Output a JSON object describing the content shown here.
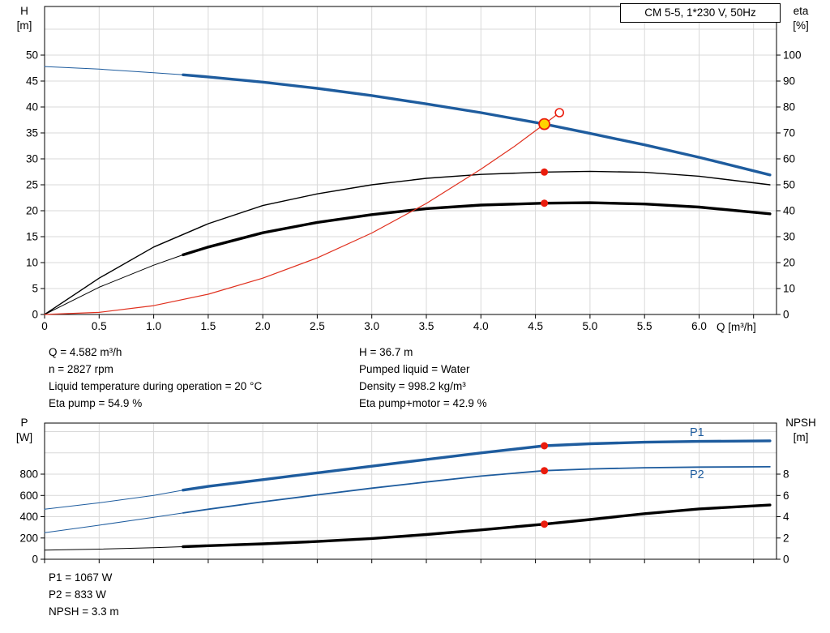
{
  "colors": {
    "blue": "#1e5c9e",
    "black": "#000000",
    "red": "#e0301e",
    "marker_red": "#ea1c0d",
    "duty_yellow": "#ffd300",
    "grid": "#d9d9d9",
    "axis": "#000000"
  },
  "info_top": {
    "left": [
      "Q = 4.582 m³/h",
      "n = 2827 rpm",
      "Liquid temperature during operation = 20 °C",
      "Eta pump = 54.9 %"
    ],
    "right": [
      "H = 36.7 m",
      "Pumped liquid = Water",
      "Density = 998.2 kg/m³",
      "Eta pump+motor = 42.9 %"
    ]
  },
  "info_bottom": [
    "P1 = 1067 W",
    "P2 = 833 W",
    "NPSH = 3.3 m"
  ],
  "chart_data": [
    {
      "id": "hq-eta-chart",
      "type": "line",
      "title": "CM 5-5, 1*230 V, 50Hz",
      "xlabel": "Q [m³/h]",
      "axis_labels": {
        "left": [
          "H",
          "[m]"
        ],
        "right": [
          "eta",
          "[%]"
        ]
      },
      "x_range": [
        0,
        6.71
      ],
      "left_range": [
        0,
        59.375
      ],
      "right_range": [
        0,
        118.75
      ],
      "x_ticks": [
        0,
        0.5,
        1,
        1.5,
        2,
        2.5,
        3,
        3.5,
        4,
        4.5,
        5,
        5.5,
        6,
        6.5
      ],
      "x_tick_labels": [
        "0",
        "0.5",
        "1.0",
        "1.5",
        "2.0",
        "2.5",
        "3.0",
        "3.5",
        "4.0",
        "4.5",
        "5.0",
        "5.5",
        "6.0",
        ""
      ],
      "x_grid": [
        0.5,
        1,
        1.5,
        2,
        2.5,
        3,
        3.5,
        4,
        4.5,
        5,
        5.5,
        6,
        6.5
      ],
      "left_ticks": [
        0,
        5,
        10,
        15,
        20,
        25,
        30,
        35,
        40,
        45,
        50
      ],
      "left_grid": [
        5,
        10,
        15,
        20,
        25,
        30,
        35,
        40,
        45,
        50,
        55
      ],
      "right_ticks": [
        0,
        10,
        20,
        30,
        40,
        50,
        60,
        70,
        80,
        90,
        100
      ],
      "series": [
        {
          "id": "head-curve",
          "name": "H (head)",
          "axis": "left",
          "color": "blue",
          "split": 1.27,
          "w_thin": 1,
          "w_thick": 3.4,
          "points": [
            [
              0,
              47.8
            ],
            [
              0.5,
              47.3
            ],
            [
              1.0,
              46.6
            ],
            [
              1.27,
              46.2
            ],
            [
              1.5,
              45.8
            ],
            [
              2.0,
              44.8
            ],
            [
              2.5,
              43.6
            ],
            [
              3.0,
              42.2
            ],
            [
              3.5,
              40.6
            ],
            [
              4.0,
              38.9
            ],
            [
              4.582,
              36.7
            ],
            [
              5.0,
              34.9
            ],
            [
              5.5,
              32.7
            ],
            [
              6.0,
              30.3
            ],
            [
              6.65,
              26.9
            ]
          ]
        },
        {
          "id": "eta-pump-curve",
          "name": "Eta pump",
          "axis": "right",
          "color": "black",
          "split": null,
          "w_thin": 1,
          "w_thick": 1.4,
          "points": [
            [
              0,
              0
            ],
            [
              0.5,
              14
            ],
            [
              1.0,
              26
            ],
            [
              1.5,
              35
            ],
            [
              2.0,
              42
            ],
            [
              2.5,
              46.5
            ],
            [
              3.0,
              50
            ],
            [
              3.5,
              52.5
            ],
            [
              4.0,
              54
            ],
            [
              4.582,
              54.9
            ],
            [
              5.0,
              55.2
            ],
            [
              5.5,
              54.8
            ],
            [
              6.0,
              53.3
            ],
            [
              6.65,
              50
            ]
          ]
        },
        {
          "id": "eta-pump-motor-curve",
          "name": "Eta pump+motor",
          "axis": "right",
          "color": "black",
          "split": 1.27,
          "w_thin": 1,
          "w_thick": 3.4,
          "points": [
            [
              0,
              0
            ],
            [
              0.5,
              10.5
            ],
            [
              1.0,
              19
            ],
            [
              1.27,
              23
            ],
            [
              1.5,
              26
            ],
            [
              2.0,
              31.5
            ],
            [
              2.5,
              35.5
            ],
            [
              3.0,
              38.5
            ],
            [
              3.5,
              40.8
            ],
            [
              4.0,
              42.2
            ],
            [
              4.582,
              42.9
            ],
            [
              5.0,
              43.1
            ],
            [
              5.5,
              42.6
            ],
            [
              6.0,
              41.4
            ],
            [
              6.65,
              38.8
            ]
          ]
        },
        {
          "id": "system-curve",
          "name": "System curve",
          "axis": "left",
          "color": "red",
          "split": null,
          "w_thin": 1,
          "w_thick": 1.2,
          "points": [
            [
              0,
              0
            ],
            [
              0.5,
              0.4
            ],
            [
              1.0,
              1.7
            ],
            [
              1.5,
              3.9
            ],
            [
              2.0,
              7.0
            ],
            [
              2.5,
              10.9
            ],
            [
              3.0,
              15.7
            ],
            [
              3.5,
              21.4
            ],
            [
              4.0,
              28.0
            ],
            [
              4.3,
              32.3
            ],
            [
              4.582,
              36.7
            ],
            [
              4.72,
              38.9
            ]
          ]
        }
      ],
      "markers": [
        {
          "type": "duty",
          "axis": "left",
          "q": 4.582,
          "v": 36.7
        },
        {
          "type": "open",
          "axis": "left",
          "q": 4.72,
          "v": 38.9
        },
        {
          "type": "dot",
          "axis": "right",
          "q": 4.582,
          "v": 54.9
        },
        {
          "type": "dot",
          "axis": "right",
          "q": 4.582,
          "v": 42.9
        }
      ]
    },
    {
      "id": "power-npsh-chart",
      "type": "line",
      "xlabel": "",
      "axis_labels": {
        "left": [
          "P",
          "[W]"
        ],
        "right": [
          "NPSH",
          "[m]"
        ]
      },
      "x_range": [
        0,
        6.71
      ],
      "left_range": [
        0,
        1280
      ],
      "right_range": [
        0,
        12.8
      ],
      "x_ticks": [
        0,
        0.5,
        1,
        1.5,
        2,
        2.5,
        3,
        3.5,
        4,
        4.5,
        5,
        5.5,
        6,
        6.5
      ],
      "x_tick_labels": null,
      "x_grid": [
        0.5,
        1,
        1.5,
        2,
        2.5,
        3,
        3.5,
        4,
        4.5,
        5,
        5.5,
        6,
        6.5
      ],
      "left_ticks": [
        0,
        200,
        400,
        600,
        800
      ],
      "left_grid": [
        200,
        400,
        600,
        800,
        1000,
        1200
      ],
      "right_ticks": [
        0,
        2,
        4,
        6,
        8
      ],
      "series": [
        {
          "id": "p1-curve",
          "label": "P1",
          "name": "P1 (input power)",
          "axis": "left",
          "color": "blue",
          "split": 1.27,
          "w_thin": 1,
          "w_thick": 3.4,
          "points": [
            [
              0,
              470
            ],
            [
              0.5,
              530
            ],
            [
              1.0,
              600
            ],
            [
              1.27,
              650
            ],
            [
              1.5,
              685
            ],
            [
              2.0,
              748
            ],
            [
              2.5,
              812
            ],
            [
              3.0,
              875
            ],
            [
              3.5,
              938
            ],
            [
              4.0,
              1000
            ],
            [
              4.582,
              1067
            ],
            [
              5.0,
              1086
            ],
            [
              5.5,
              1100
            ],
            [
              6.0,
              1108
            ],
            [
              6.65,
              1113
            ]
          ]
        },
        {
          "id": "p2-curve",
          "label": "P2",
          "name": "P2 (shaft power)",
          "axis": "left",
          "color": "blue",
          "split": 1.27,
          "w_thin": 1,
          "w_thick": 1.8,
          "points": [
            [
              0,
              250
            ],
            [
              0.5,
              320
            ],
            [
              1.0,
              395
            ],
            [
              1.27,
              435
            ],
            [
              1.5,
              470
            ],
            [
              2.0,
              540
            ],
            [
              2.5,
              605
            ],
            [
              3.0,
              668
            ],
            [
              3.5,
              726
            ],
            [
              4.0,
              782
            ],
            [
              4.582,
              833
            ],
            [
              5.0,
              849
            ],
            [
              5.5,
              860
            ],
            [
              6.0,
              866
            ],
            [
              6.65,
              869
            ]
          ]
        },
        {
          "id": "npsh-curve",
          "label": "",
          "name": "NPSH",
          "axis": "right",
          "color": "black",
          "split": 1.27,
          "w_thin": 1,
          "w_thick": 3.4,
          "points": [
            [
              0,
              0.85
            ],
            [
              0.5,
              0.95
            ],
            [
              1.0,
              1.08
            ],
            [
              1.27,
              1.18
            ],
            [
              1.5,
              1.27
            ],
            [
              2.0,
              1.45
            ],
            [
              2.5,
              1.67
            ],
            [
              3.0,
              1.95
            ],
            [
              3.5,
              2.32
            ],
            [
              4.0,
              2.76
            ],
            [
              4.582,
              3.3
            ],
            [
              5.0,
              3.73
            ],
            [
              5.5,
              4.28
            ],
            [
              6.0,
              4.73
            ],
            [
              6.65,
              5.1
            ]
          ]
        }
      ],
      "markers": [
        {
          "type": "dot",
          "axis": "left",
          "q": 4.582,
          "v": 1067
        },
        {
          "type": "dot",
          "axis": "left",
          "q": 4.582,
          "v": 833
        },
        {
          "type": "dot",
          "axis": "right",
          "q": 4.582,
          "v": 3.3
        }
      ]
    }
  ]
}
